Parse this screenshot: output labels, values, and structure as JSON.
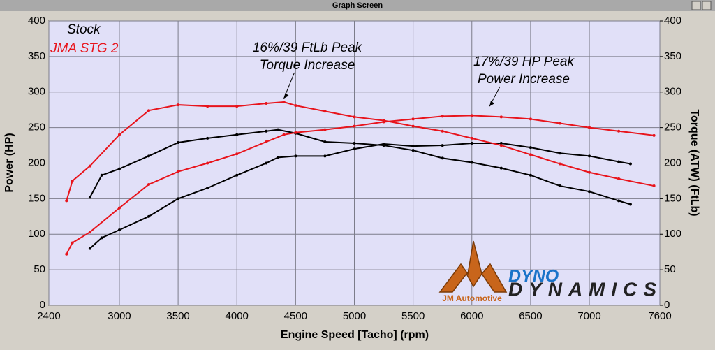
{
  "window_title": "Graph Screen",
  "chart_data": {
    "type": "line",
    "xlabel": "Engine Speed [Tacho] (rpm)",
    "ylabel": "Power (HP)",
    "y2label": "Torque (ATW) (FtLb)",
    "xlim": [
      2400,
      7600
    ],
    "xticks": [
      2400,
      3000,
      3500,
      4000,
      4500,
      5000,
      5500,
      6000,
      6500,
      7000,
      7600
    ],
    "ylim": [
      0,
      400
    ],
    "yticks": [
      0,
      50,
      100,
      150,
      200,
      250,
      300,
      350,
      400
    ],
    "y2lim": [
      0,
      400
    ],
    "y2ticks": [
      0,
      50,
      100,
      150,
      200,
      250,
      300,
      350,
      400
    ],
    "grid": true,
    "annotations": [
      {
        "lines": [
          "16%/39 FtLb Peak",
          "Torque Increase"
        ],
        "x": 4400,
        "y": 286
      },
      {
        "lines": [
          "17%/39 HP Peak",
          "Power Increase"
        ],
        "x": 6150,
        "y": 275
      }
    ],
    "logo": {
      "brand_top": "DYNO",
      "brand_bottom": "DYNAMICS",
      "shop": "JM Automotive"
    },
    "series": [
      {
        "name": "Stock",
        "color": "#000000",
        "x": [
          2750,
          2850,
          3000,
          3250,
          3500,
          3750,
          4000,
          4250,
          4350,
          4500,
          4750,
          5000,
          5250,
          5500,
          5750,
          6000,
          6250,
          6500,
          6750,
          7000,
          7250,
          7350
        ],
        "torque": [
          152,
          183,
          192,
          210,
          229,
          235,
          240,
          245,
          247,
          242,
          230,
          228,
          225,
          218,
          207,
          201,
          193,
          183,
          168,
          160,
          147,
          142
        ],
        "power": [
          80,
          95,
          106,
          125,
          150,
          165,
          183,
          200,
          208,
          210,
          210,
          220,
          227,
          224,
          225,
          228,
          228,
          222,
          214,
          210,
          202,
          199
        ]
      },
      {
        "name": "JMA STG 2",
        "color": "#e8141c",
        "x": [
          2550,
          2600,
          2750,
          3000,
          3250,
          3500,
          3750,
          4000,
          4250,
          4400,
          4500,
          4750,
          5000,
          5250,
          5500,
          5750,
          6000,
          6250,
          6500,
          6750,
          7000,
          7250,
          7550
        ],
        "torque": [
          147,
          175,
          196,
          240,
          274,
          282,
          280,
          280,
          284,
          286,
          281,
          273,
          265,
          260,
          252,
          245,
          235,
          225,
          212,
          199,
          187,
          178,
          168
        ],
        "power": [
          72,
          88,
          103,
          137,
          170,
          188,
          200,
          213,
          230,
          240,
          243,
          247,
          252,
          258,
          262,
          266,
          267,
          265,
          262,
          256,
          250,
          245,
          239
        ]
      }
    ]
  }
}
